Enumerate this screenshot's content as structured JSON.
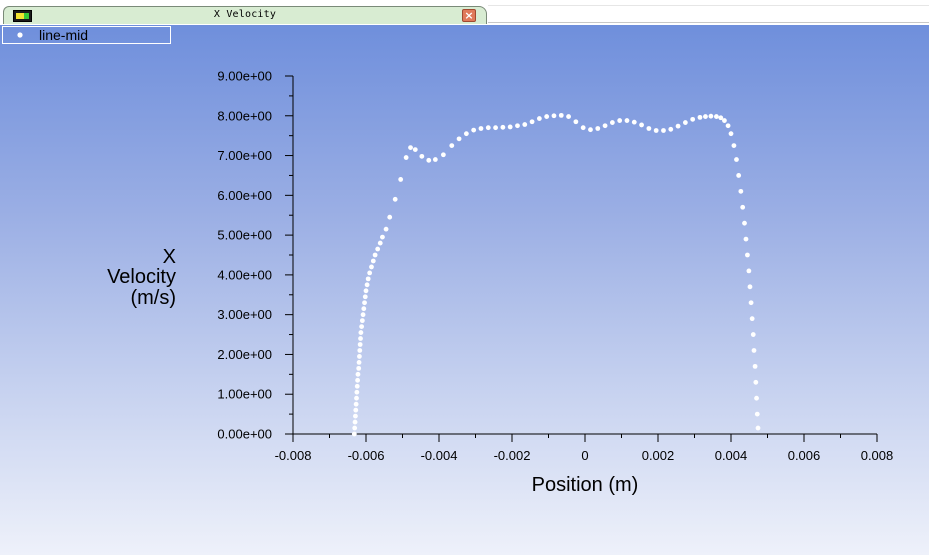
{
  "window": {
    "tab_title": "X Velocity",
    "close_glyph": "×",
    "app_icon": "window-app-icon"
  },
  "chart_data": {
    "type": "scatter",
    "legend": {
      "position": "top-left",
      "entries": [
        "line-mid"
      ]
    },
    "series": [
      {
        "name": "line-mid",
        "color": "#ffffff",
        "marker": "circle",
        "points": [
          [
            -0.00632,
            0.0
          ],
          [
            -0.00631,
            0.15
          ],
          [
            -0.0063,
            0.3
          ],
          [
            -0.00629,
            0.45
          ],
          [
            -0.00628,
            0.6
          ],
          [
            -0.00627,
            0.75
          ],
          [
            -0.00626,
            0.9
          ],
          [
            -0.00625,
            1.05
          ],
          [
            -0.00624,
            1.2
          ],
          [
            -0.00623,
            1.35
          ],
          [
            -0.00622,
            1.5
          ],
          [
            -0.0062,
            1.65
          ],
          [
            -0.00619,
            1.8
          ],
          [
            -0.00618,
            1.95
          ],
          [
            -0.00617,
            2.1
          ],
          [
            -0.00616,
            2.25
          ],
          [
            -0.00615,
            2.4
          ],
          [
            -0.00614,
            2.55
          ],
          [
            -0.00612,
            2.7
          ],
          [
            -0.0061,
            2.85
          ],
          [
            -0.00608,
            3.0
          ],
          [
            -0.00606,
            3.15
          ],
          [
            -0.00604,
            3.3
          ],
          [
            -0.00602,
            3.45
          ],
          [
            -0.006,
            3.6
          ],
          [
            -0.00597,
            3.75
          ],
          [
            -0.00594,
            3.9
          ],
          [
            -0.0059,
            4.05
          ],
          [
            -0.00585,
            4.2
          ],
          [
            -0.0058,
            4.35
          ],
          [
            -0.00575,
            4.5
          ],
          [
            -0.00568,
            4.65
          ],
          [
            -0.00561,
            4.8
          ],
          [
            -0.00555,
            4.95
          ],
          [
            -0.00545,
            5.15
          ],
          [
            -0.00535,
            5.45
          ],
          [
            -0.0052,
            5.9
          ],
          [
            -0.00505,
            6.4
          ],
          [
            -0.0049,
            6.95
          ],
          [
            -0.00478,
            7.2
          ],
          [
            -0.00465,
            7.15
          ],
          [
            -0.00447,
            6.98
          ],
          [
            -0.00428,
            6.88
          ],
          [
            -0.0041,
            6.9
          ],
          [
            -0.00388,
            7.02
          ],
          [
            -0.00365,
            7.25
          ],
          [
            -0.00345,
            7.42
          ],
          [
            -0.00325,
            7.55
          ],
          [
            -0.00305,
            7.64
          ],
          [
            -0.00285,
            7.68
          ],
          [
            -0.00265,
            7.7
          ],
          [
            -0.00245,
            7.7
          ],
          [
            -0.00225,
            7.71
          ],
          [
            -0.00205,
            7.72
          ],
          [
            -0.00185,
            7.75
          ],
          [
            -0.00165,
            7.78
          ],
          [
            -0.00145,
            7.85
          ],
          [
            -0.00125,
            7.93
          ],
          [
            -0.00105,
            7.98
          ],
          [
            -0.00085,
            8.0
          ],
          [
            -0.00065,
            8.01
          ],
          [
            -0.00045,
            7.98
          ],
          [
            -0.00025,
            7.85
          ],
          [
            -5e-05,
            7.7
          ],
          [
            0.00015,
            7.65
          ],
          [
            0.00035,
            7.68
          ],
          [
            0.00055,
            7.75
          ],
          [
            0.00075,
            7.83
          ],
          [
            0.00095,
            7.88
          ],
          [
            0.00115,
            7.88
          ],
          [
            0.00135,
            7.84
          ],
          [
            0.00155,
            7.77
          ],
          [
            0.00175,
            7.68
          ],
          [
            0.00195,
            7.63
          ],
          [
            0.00215,
            7.63
          ],
          [
            0.00235,
            7.66
          ],
          [
            0.00255,
            7.74
          ],
          [
            0.00275,
            7.83
          ],
          [
            0.00295,
            7.91
          ],
          [
            0.00315,
            7.96
          ],
          [
            0.0033,
            7.98
          ],
          [
            0.00345,
            7.99
          ],
          [
            0.0036,
            7.98
          ],
          [
            0.00372,
            7.95
          ],
          [
            0.00382,
            7.88
          ],
          [
            0.00392,
            7.75
          ],
          [
            0.004,
            7.55
          ],
          [
            0.00408,
            7.25
          ],
          [
            0.00415,
            6.9
          ],
          [
            0.00421,
            6.5
          ],
          [
            0.00427,
            6.1
          ],
          [
            0.00432,
            5.7
          ],
          [
            0.00437,
            5.3
          ],
          [
            0.00441,
            4.9
          ],
          [
            0.00445,
            4.5
          ],
          [
            0.00449,
            4.1
          ],
          [
            0.00452,
            3.7
          ],
          [
            0.00455,
            3.3
          ],
          [
            0.00458,
            2.9
          ],
          [
            0.00461,
            2.5
          ],
          [
            0.00463,
            2.1
          ],
          [
            0.00466,
            1.7
          ],
          [
            0.00468,
            1.3
          ],
          [
            0.0047,
            0.9
          ],
          [
            0.00472,
            0.5
          ],
          [
            0.00474,
            0.15
          ]
        ]
      }
    ],
    "xlabel": "Position (m)",
    "ylabel": [
      "X",
      "Velocity",
      "(m/s)"
    ],
    "xlim": [
      -0.008,
      0.008
    ],
    "ylim": [
      0,
      9
    ],
    "xticks": [
      {
        "value": -0.008,
        "label": "-0.008"
      },
      {
        "value": -0.006,
        "label": "-0.006"
      },
      {
        "value": -0.004,
        "label": "-0.004"
      },
      {
        "value": -0.002,
        "label": "-0.002"
      },
      {
        "value": 0,
        "label": "0"
      },
      {
        "value": 0.002,
        "label": "0.002"
      },
      {
        "value": 0.004,
        "label": "0.004"
      },
      {
        "value": 0.006,
        "label": "0.006"
      },
      {
        "value": 0.008,
        "label": "0.008"
      }
    ],
    "yticks": [
      {
        "value": 0,
        "label": "0.00e+00"
      },
      {
        "value": 1,
        "label": "1.00e+00"
      },
      {
        "value": 2,
        "label": "2.00e+00"
      },
      {
        "value": 3,
        "label": "3.00e+00"
      },
      {
        "value": 4,
        "label": "4.00e+00"
      },
      {
        "value": 5,
        "label": "5.00e+00"
      },
      {
        "value": 6,
        "label": "6.00e+00"
      },
      {
        "value": 7,
        "label": "7.00e+00"
      },
      {
        "value": 8,
        "label": "8.00e+00"
      },
      {
        "value": 9,
        "label": "9.00e+00"
      }
    ],
    "grid": false
  }
}
